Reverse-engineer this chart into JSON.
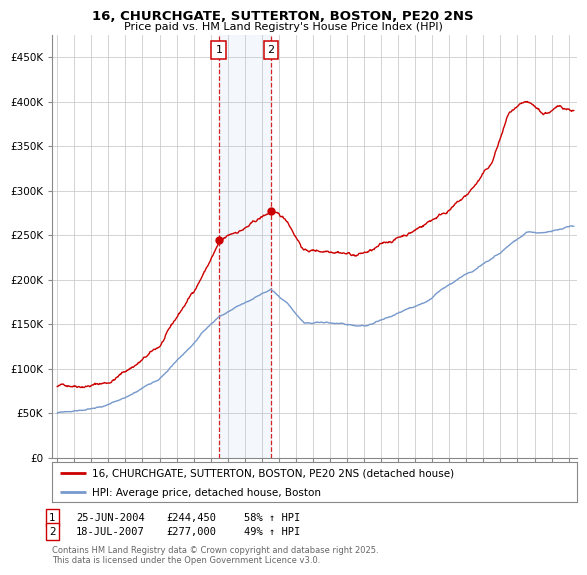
{
  "title": "16, CHURCHGATE, SUTTERTON, BOSTON, PE20 2NS",
  "subtitle": "Price paid vs. HM Land Registry's House Price Index (HPI)",
  "ylabel_ticks": [
    "£0",
    "£50K",
    "£100K",
    "£150K",
    "£200K",
    "£250K",
    "£300K",
    "£350K",
    "£400K",
    "£450K"
  ],
  "ytick_values": [
    0,
    50000,
    100000,
    150000,
    200000,
    250000,
    300000,
    350000,
    400000,
    450000
  ],
  "ylim": [
    0,
    475000
  ],
  "xlim_start": 1994.7,
  "xlim_end": 2025.5,
  "hpi_color": "#7799cc",
  "price_color": "#cc0000",
  "marker1_date": 2004.48,
  "marker1_price": 244450,
  "marker2_date": 2007.54,
  "marker2_price": 277000,
  "legend_line1": "16, CHURCHGATE, SUTTERTON, BOSTON, PE20 2NS (detached house)",
  "legend_line2": "HPI: Average price, detached house, Boston",
  "footer": "Contains HM Land Registry data © Crown copyright and database right 2025.\nThis data is licensed under the Open Government Licence v3.0.",
  "background_color": "#ffffff",
  "grid_color": "#cccccc"
}
